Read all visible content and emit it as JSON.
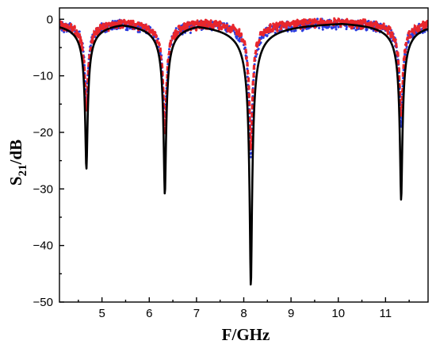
{
  "chart_data": {
    "type": "line",
    "xlabel": "F/GHz",
    "ylabel": "S21/dB",
    "ylabel_main": "S",
    "ylabel_sub": "21",
    "ylabel_rest": "/dB",
    "xlim": [
      4.1,
      11.9
    ],
    "ylim": [
      -50,
      2
    ],
    "xticks": [
      5,
      6,
      7,
      8,
      9,
      10,
      11
    ],
    "yticks": [
      0,
      -10,
      -20,
      -30,
      -40,
      -50
    ],
    "ytick_labels": [
      "0",
      "−10",
      "−20",
      "−30",
      "−40",
      "−50"
    ],
    "grid": false,
    "legend": "none",
    "series": [
      {
        "style": "solid",
        "color": "#000000",
        "resonances": [
          {
            "f": 4.67,
            "depth": -26.5
          },
          {
            "f": 6.33,
            "depth": -31.0
          },
          {
            "f": 8.15,
            "depth": -47.2
          },
          {
            "f": 11.33,
            "depth": -32.0
          }
        ]
      },
      {
        "style": "dashed",
        "color": "#e8262c",
        "resonances": [
          {
            "f": 4.67,
            "depth": -16.0
          },
          {
            "f": 6.33,
            "depth": -20.0
          },
          {
            "f": 8.15,
            "depth": -22.0
          },
          {
            "f": 11.33,
            "depth": -17.0
          }
        ]
      },
      {
        "style": "dotted",
        "color": "#2b3ce0",
        "resonances": [
          {
            "f": 4.67,
            "depth": -14.0
          },
          {
            "f": 6.33,
            "depth": -19.0
          },
          {
            "f": 8.15,
            "depth": -24.0
          },
          {
            "f": 11.33,
            "depth": -18.0
          }
        ]
      }
    ]
  }
}
